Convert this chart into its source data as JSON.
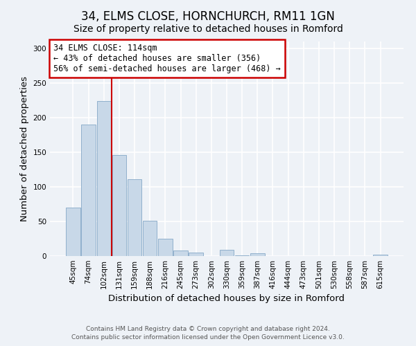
{
  "title": "34, ELMS CLOSE, HORNCHURCH, RM11 1GN",
  "subtitle": "Size of property relative to detached houses in Romford",
  "xlabel": "Distribution of detached houses by size in Romford",
  "ylabel": "Number of detached properties",
  "bar_labels": [
    "45sqm",
    "74sqm",
    "102sqm",
    "131sqm",
    "159sqm",
    "188sqm",
    "216sqm",
    "245sqm",
    "273sqm",
    "302sqm",
    "330sqm",
    "359sqm",
    "387sqm",
    "416sqm",
    "444sqm",
    "473sqm",
    "501sqm",
    "530sqm",
    "558sqm",
    "587sqm",
    "615sqm"
  ],
  "bar_heights": [
    70,
    190,
    224,
    146,
    111,
    51,
    25,
    8,
    5,
    0,
    9,
    1,
    4,
    0,
    0,
    0,
    0,
    0,
    0,
    0,
    2
  ],
  "bar_color": "#c8d8e8",
  "bar_edgecolor": "#90b0cc",
  "vline_color": "#cc0000",
  "annotation_title": "34 ELMS CLOSE: 114sqm",
  "annotation_line1": "← 43% of detached houses are smaller (356)",
  "annotation_line2": "56% of semi-detached houses are larger (468) →",
  "annotation_box_edgecolor": "#cc0000",
  "ylim": [
    0,
    310
  ],
  "yticks": [
    0,
    50,
    100,
    150,
    200,
    250,
    300
  ],
  "footer1": "Contains HM Land Registry data © Crown copyright and database right 2024.",
  "footer2": "Contains public sector information licensed under the Open Government Licence v3.0.",
  "bg_color": "#eef2f7",
  "plot_bg_color": "#eef2f7",
  "title_fontsize": 12,
  "subtitle_fontsize": 10,
  "axis_label_fontsize": 9.5,
  "tick_fontsize": 7.5,
  "footer_fontsize": 6.5,
  "annotation_fontsize": 8.5
}
